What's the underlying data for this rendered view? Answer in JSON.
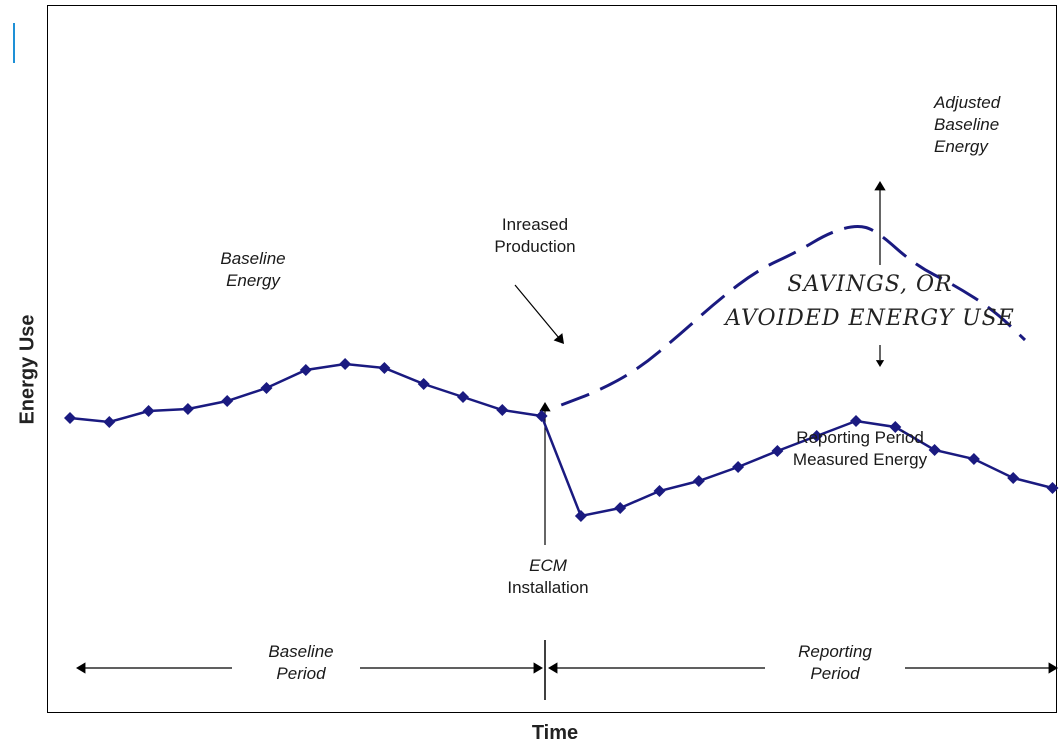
{
  "chart_data": {
    "type": "line",
    "xlabel": "Time",
    "ylabel": "Energy Use",
    "colors": {
      "line": "#1a1a80",
      "accent": "#1e90d6",
      "axis": "#000000"
    },
    "series": [
      {
        "label": "Baseline Energy",
        "style": "solid-markers",
        "points": [
          [
            1,
            322
          ],
          [
            2,
            318
          ],
          [
            3,
            329
          ],
          [
            4,
            331
          ],
          [
            5,
            339
          ],
          [
            6,
            352
          ],
          [
            7,
            370
          ],
          [
            8,
            376
          ],
          [
            9,
            372
          ],
          [
            10,
            356
          ],
          [
            11,
            343
          ],
          [
            12,
            330
          ],
          [
            13,
            324
          ],
          [
            14,
            224
          ],
          [
            15,
            232
          ],
          [
            16,
            249
          ],
          [
            17,
            259
          ],
          [
            18,
            273
          ],
          [
            19,
            289
          ],
          [
            20,
            304
          ],
          [
            21,
            319
          ],
          [
            22,
            313
          ],
          [
            23,
            290
          ],
          [
            24,
            281
          ],
          [
            25,
            262
          ],
          [
            26,
            252
          ]
        ]
      },
      {
        "label": "Adjusted Baseline Energy",
        "style": "dashed",
        "points": [
          [
            13.5,
            335
          ],
          [
            14.5,
            350
          ],
          [
            15.5,
            372
          ],
          [
            16.5,
            405
          ],
          [
            17.5,
            440
          ],
          [
            18.5,
            470
          ],
          [
            19.5,
            488
          ],
          [
            20.3,
            507
          ],
          [
            21,
            515
          ],
          [
            21.5,
            510
          ],
          [
            22.5,
            475
          ],
          [
            23.5,
            455
          ],
          [
            24.5,
            430
          ],
          [
            25.3,
            400
          ]
        ]
      }
    ],
    "annotations": {
      "baseline_energy": [
        "Baseline",
        "Energy"
      ],
      "increased_production": [
        "Inreased",
        "Production"
      ],
      "adjusted_baseline": [
        "Adjusted",
        "Baseline",
        "Energy"
      ],
      "savings": [
        "SAVINGS, OR",
        "AVOIDED ENERGY USE"
      ],
      "reporting_measured": [
        "Reporting Period",
        "Measured Energy"
      ],
      "ecm": [
        "ECM",
        "Installation"
      ],
      "baseline_period": [
        "Baseline",
        "Period"
      ],
      "reporting_period": [
        "Reporting",
        "Period"
      ]
    }
  }
}
